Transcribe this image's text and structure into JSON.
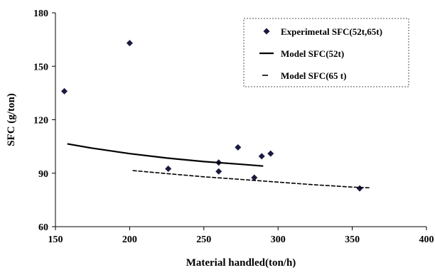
{
  "chart_data": {
    "type": "scatter",
    "xlabel": "Material handled(ton/h)",
    "ylabel": "SFC (g/ton)",
    "xlim": [
      150,
      400
    ],
    "ylim": [
      60,
      180
    ],
    "x_ticks": [
      150,
      200,
      250,
      300,
      350,
      400
    ],
    "y_ticks": [
      60,
      90,
      120,
      150,
      180
    ],
    "grid": false,
    "legend_position": "top-right",
    "series": [
      {
        "name": "Experimetal SFC(52t,65t)",
        "kind": "points",
        "marker": "diamond",
        "color": "#1a1a40",
        "x": [
          156,
          200,
          226,
          260,
          260,
          273,
          284,
          289,
          295,
          355
        ],
        "y": [
          136,
          163,
          92.5,
          96,
          91,
          104.5,
          87.5,
          99.5,
          101,
          81.5
        ]
      },
      {
        "name": "Model SFC(52t)",
        "kind": "line",
        "style": "solid",
        "color": "#000000",
        "x": [
          158,
          175,
          200,
          225,
          250,
          275,
          290
        ],
        "y": [
          106.5,
          104,
          101,
          98.5,
          96.5,
          95,
          94
        ]
      },
      {
        "name": "Model SFC(65 t)",
        "kind": "line",
        "style": "dashed",
        "color": "#000000",
        "x": [
          202,
          225,
          250,
          275,
          300,
          325,
          350,
          362
        ],
        "y": [
          91.5,
          89.8,
          88,
          86.5,
          85,
          83.5,
          82.2,
          81.8
        ]
      }
    ]
  }
}
